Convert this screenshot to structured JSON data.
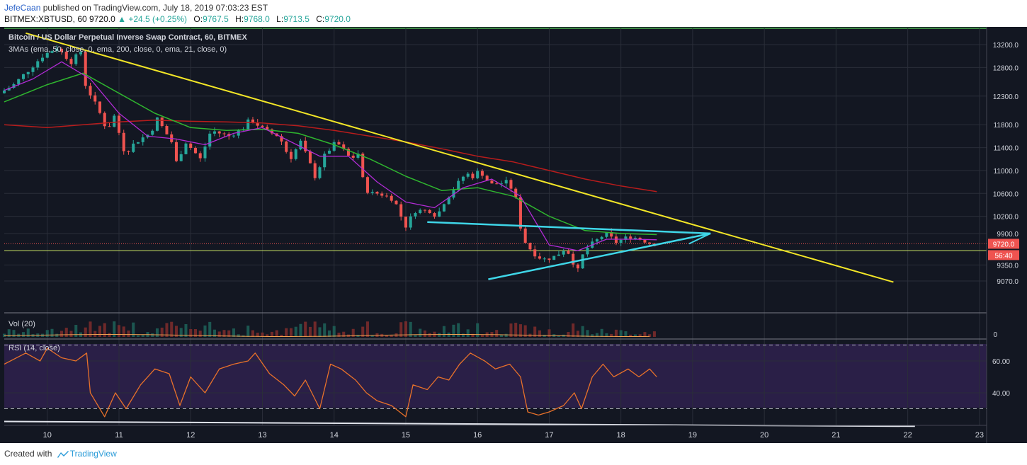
{
  "header": {
    "author": "JefeCaan",
    "published_text": "published on TradingView.com, July 18, 2019 07:03:23 EST",
    "symbol": "BITMEX:XBTUSD, 60",
    "last": "9720.0",
    "change": "+24.5 (+0.25%)",
    "o_label": "O:",
    "o": "9767.5",
    "h_label": "H:",
    "h": "9768.0",
    "l_label": "L:",
    "l": "9713.5",
    "c_label": "C:",
    "c": "9720.0"
  },
  "legend": {
    "title": "Bitcoin / US Dollar Perpetual Inverse Swap Contract, 60, BITMEX",
    "mas": "3MAs (ema, 50, close, 0, ema, 200, close, 0, ema, 21, close, 0)",
    "vol": "Vol (20)",
    "rsi": "RSI (14, close)"
  },
  "price_badge": "9720.0",
  "timer_badge": "56:40",
  "footer": {
    "created": "Created with",
    "brand": "TradingView"
  },
  "colors": {
    "bg": "#131722",
    "grid": "#2a2e39",
    "up": "#26a69a",
    "down": "#ef5350",
    "ema50": "#2fb52f",
    "ema200": "#b71c1c",
    "ema21": "#b22bd6",
    "trend": "#f3e627",
    "triangle": "#3fd6e8",
    "rsi": "#e8712a",
    "rsi_band": "#2a1f47"
  },
  "chart_data": [
    {
      "type": "candlestick",
      "title": "Bitcoin / US Dollar Perpetual Inverse Swap Contract, 60, BITMEX",
      "ylim": [
        8900,
        13400
      ],
      "y_ticks": [
        13200,
        12800,
        12300,
        11800,
        11400,
        11000,
        10600,
        10200,
        9900,
        9350,
        9070
      ],
      "x_ticks": [
        "10",
        "11",
        "12",
        "13",
        "14",
        "15",
        "16",
        "17",
        "18",
        "19",
        "20",
        "21",
        "22",
        "23"
      ],
      "x_range_days": [
        9.4,
        23.1
      ],
      "last_price": 9720,
      "support_level": 9600,
      "keypoints": [
        [
          9.4,
          12350
        ],
        [
          9.6,
          12500
        ],
        [
          9.8,
          12750
        ],
        [
          10.0,
          13000
        ],
        [
          10.2,
          13150
        ],
        [
          10.4,
          12900
        ],
        [
          10.55,
          13100
        ],
        [
          10.6,
          12500
        ],
        [
          10.8,
          12000
        ],
        [
          10.9,
          11700
        ],
        [
          11.0,
          11950
        ],
        [
          11.15,
          11300
        ],
        [
          11.3,
          11500
        ],
        [
          11.5,
          11650
        ],
        [
          11.6,
          11900
        ],
        [
          11.8,
          11500
        ],
        [
          11.85,
          11100
        ],
        [
          12.0,
          11500
        ],
        [
          12.2,
          11200
        ],
        [
          12.35,
          11700
        ],
        [
          12.6,
          11600
        ],
        [
          12.8,
          11750
        ],
        [
          12.9,
          11900
        ],
        [
          13.1,
          11700
        ],
        [
          13.3,
          11600
        ],
        [
          13.45,
          11200
        ],
        [
          13.6,
          11500
        ],
        [
          13.8,
          10900
        ],
        [
          13.95,
          11300
        ],
        [
          14.1,
          11500
        ],
        [
          14.3,
          11200
        ],
        [
          14.4,
          11300
        ],
        [
          14.45,
          10900
        ],
        [
          14.55,
          10600
        ],
        [
          14.7,
          10600
        ],
        [
          14.9,
          10500
        ],
        [
          15.0,
          10200
        ],
        [
          15.05,
          10000
        ],
        [
          15.2,
          10300
        ],
        [
          15.4,
          10300
        ],
        [
          15.5,
          10200
        ],
        [
          15.6,
          10450
        ],
        [
          15.75,
          10700
        ],
        [
          15.9,
          10950
        ],
        [
          16.0,
          10900
        ],
        [
          16.1,
          11000
        ],
        [
          16.25,
          10750
        ],
        [
          16.5,
          10800
        ],
        [
          16.6,
          10500
        ],
        [
          16.65,
          10100
        ],
        [
          16.7,
          9850
        ],
        [
          16.75,
          9700
        ],
        [
          16.9,
          9500
        ],
        [
          17.0,
          9450
        ],
        [
          17.15,
          9500
        ],
        [
          17.3,
          9650
        ],
        [
          17.4,
          9400
        ],
        [
          17.45,
          9150
        ],
        [
          17.5,
          9450
        ],
        [
          17.6,
          9650
        ],
        [
          17.75,
          9800
        ],
        [
          17.85,
          9900
        ],
        [
          18.0,
          9750
        ],
        [
          18.2,
          9850
        ],
        [
          18.35,
          9800
        ],
        [
          18.5,
          9720
        ]
      ],
      "ema50": [
        [
          9.4,
          12200
        ],
        [
          10.0,
          12500
        ],
        [
          10.5,
          12700
        ],
        [
          11.0,
          12350
        ],
        [
          11.5,
          12000
        ],
        [
          12.0,
          11750
        ],
        [
          12.5,
          11700
        ],
        [
          13.0,
          11720
        ],
        [
          13.5,
          11650
        ],
        [
          14.0,
          11450
        ],
        [
          14.5,
          11200
        ],
        [
          15.0,
          10900
        ],
        [
          15.5,
          10650
        ],
        [
          16.0,
          10700
        ],
        [
          16.5,
          10550
        ],
        [
          17.0,
          10200
        ],
        [
          17.5,
          9950
        ],
        [
          18.0,
          9900
        ],
        [
          18.5,
          9880
        ]
      ],
      "ema200": [
        [
          9.4,
          11800
        ],
        [
          10.0,
          11750
        ],
        [
          10.5,
          11800
        ],
        [
          11.0,
          11850
        ],
        [
          11.5,
          11880
        ],
        [
          12.0,
          11860
        ],
        [
          12.5,
          11850
        ],
        [
          13.0,
          11830
        ],
        [
          13.5,
          11780
        ],
        [
          14.0,
          11700
        ],
        [
          14.5,
          11600
        ],
        [
          15.0,
          11500
        ],
        [
          15.5,
          11380
        ],
        [
          16.0,
          11250
        ],
        [
          16.5,
          11150
        ],
        [
          17.0,
          11000
        ],
        [
          17.5,
          10850
        ],
        [
          18.0,
          10730
        ],
        [
          18.5,
          10630
        ]
      ],
      "ema21": [
        [
          9.4,
          12400
        ],
        [
          9.8,
          12600
        ],
        [
          10.2,
          12900
        ],
        [
          10.6,
          12600
        ],
        [
          11.0,
          12000
        ],
        [
          11.4,
          11600
        ],
        [
          11.8,
          11550
        ],
        [
          12.2,
          11450
        ],
        [
          12.6,
          11650
        ],
        [
          13.0,
          11750
        ],
        [
          13.4,
          11500
        ],
        [
          13.8,
          11250
        ],
        [
          14.2,
          11250
        ],
        [
          14.6,
          10800
        ],
        [
          15.0,
          10450
        ],
        [
          15.4,
          10350
        ],
        [
          15.8,
          10700
        ],
        [
          16.2,
          10850
        ],
        [
          16.6,
          10550
        ],
        [
          17.0,
          9700
        ],
        [
          17.4,
          9600
        ],
        [
          17.8,
          9800
        ],
        [
          18.2,
          9800
        ],
        [
          18.5,
          9790
        ]
      ],
      "trendline": [
        [
          9.7,
          13400
        ],
        [
          21.8,
          9050
        ]
      ],
      "triangle_upper": [
        [
          15.3,
          10100
        ],
        [
          19.25,
          9900
        ]
      ],
      "triangle_lower": [
        [
          16.15,
          9100
        ],
        [
          19.25,
          9900
        ]
      ],
      "triangle_close": [
        [
          18.95,
          9720
        ],
        [
          19.25,
          9900
        ]
      ]
    },
    {
      "type": "bar",
      "title": "Vol (20)",
      "y_ticks": [
        0
      ]
    },
    {
      "type": "line",
      "title": "RSI (14, close)",
      "ylim": [
        16,
        76
      ],
      "y_ticks": [
        60,
        40
      ],
      "bands": [
        30,
        70
      ],
      "keypoints": [
        [
          9.4,
          58
        ],
        [
          9.7,
          65
        ],
        [
          9.9,
          60
        ],
        [
          10.0,
          68
        ],
        [
          10.2,
          62
        ],
        [
          10.4,
          60
        ],
        [
          10.55,
          65
        ],
        [
          10.6,
          40
        ],
        [
          10.8,
          25
        ],
        [
          10.95,
          40
        ],
        [
          11.1,
          30
        ],
        [
          11.3,
          45
        ],
        [
          11.5,
          55
        ],
        [
          11.7,
          52
        ],
        [
          11.85,
          32
        ],
        [
          12.0,
          50
        ],
        [
          12.2,
          40
        ],
        [
          12.4,
          55
        ],
        [
          12.6,
          58
        ],
        [
          12.8,
          60
        ],
        [
          12.9,
          65
        ],
        [
          13.1,
          52
        ],
        [
          13.3,
          45
        ],
        [
          13.45,
          38
        ],
        [
          13.6,
          48
        ],
        [
          13.8,
          30
        ],
        [
          13.95,
          58
        ],
        [
          14.1,
          55
        ],
        [
          14.3,
          48
        ],
        [
          14.45,
          40
        ],
        [
          14.6,
          35
        ],
        [
          14.8,
          32
        ],
        [
          15.0,
          25
        ],
        [
          15.1,
          45
        ],
        [
          15.3,
          42
        ],
        [
          15.45,
          50
        ],
        [
          15.6,
          48
        ],
        [
          15.75,
          58
        ],
        [
          15.9,
          65
        ],
        [
          16.1,
          60
        ],
        [
          16.25,
          55
        ],
        [
          16.45,
          58
        ],
        [
          16.6,
          50
        ],
        [
          16.7,
          28
        ],
        [
          16.85,
          26
        ],
        [
          17.0,
          28
        ],
        [
          17.2,
          32
        ],
        [
          17.35,
          40
        ],
        [
          17.45,
          30
        ],
        [
          17.6,
          50
        ],
        [
          17.75,
          58
        ],
        [
          17.9,
          50
        ],
        [
          18.1,
          55
        ],
        [
          18.25,
          50
        ],
        [
          18.4,
          55
        ],
        [
          18.5,
          50
        ]
      ],
      "baseline": [
        [
          9.4,
          22
        ],
        [
          22.1,
          19
        ]
      ]
    }
  ]
}
